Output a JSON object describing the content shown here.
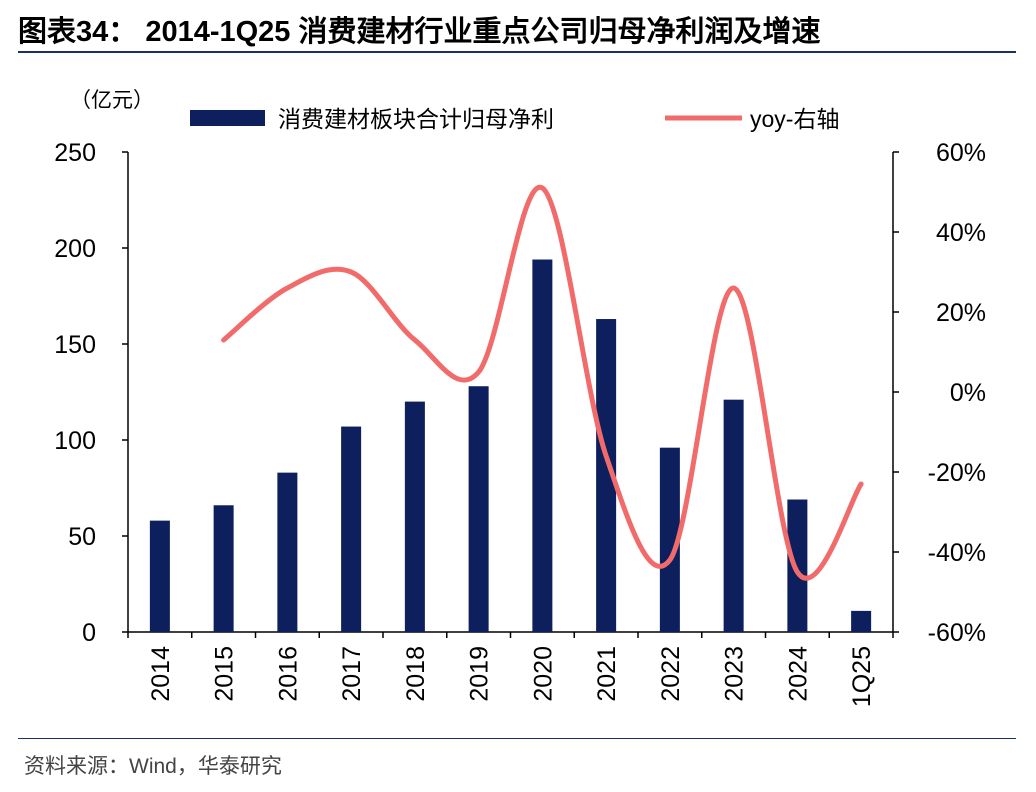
{
  "title": "图表34： 2014-1Q25 消费建材行业重点公司归母净利润及增速",
  "source": "资料来源：Wind，华泰研究",
  "colors": {
    "bar": "#0d1f5c",
    "line": "#f26b6b",
    "rule": "#1b2f6b"
  },
  "chart_data": {
    "type": "bar",
    "categories": [
      "2014",
      "2015",
      "2016",
      "2017",
      "2018",
      "2019",
      "2020",
      "2021",
      "2022",
      "2023",
      "2024",
      "1Q25"
    ],
    "series": [
      {
        "name": "消费建材板块合计归母净利",
        "type": "bar",
        "axis": "left",
        "values": [
          58,
          66,
          83,
          107,
          120,
          128,
          194,
          163,
          96,
          121,
          69,
          11
        ]
      },
      {
        "name": "yoy-右轴",
        "type": "line",
        "axis": "right",
        "values": [
          null,
          13,
          26,
          30,
          13,
          5,
          51,
          -16,
          -42,
          26,
          -45,
          -23
        ]
      }
    ],
    "ylabel_left": "（亿元）",
    "ylim_left": [
      0,
      250
    ],
    "yticks_left": [
      "0",
      "50",
      "100",
      "150",
      "200",
      "250"
    ],
    "ylim_right": [
      -60,
      60
    ],
    "yticks_right": [
      "-60%",
      "-40%",
      "-20%",
      "0%",
      "20%",
      "40%",
      "60%"
    ],
    "legend_position": "top",
    "grid": false
  }
}
